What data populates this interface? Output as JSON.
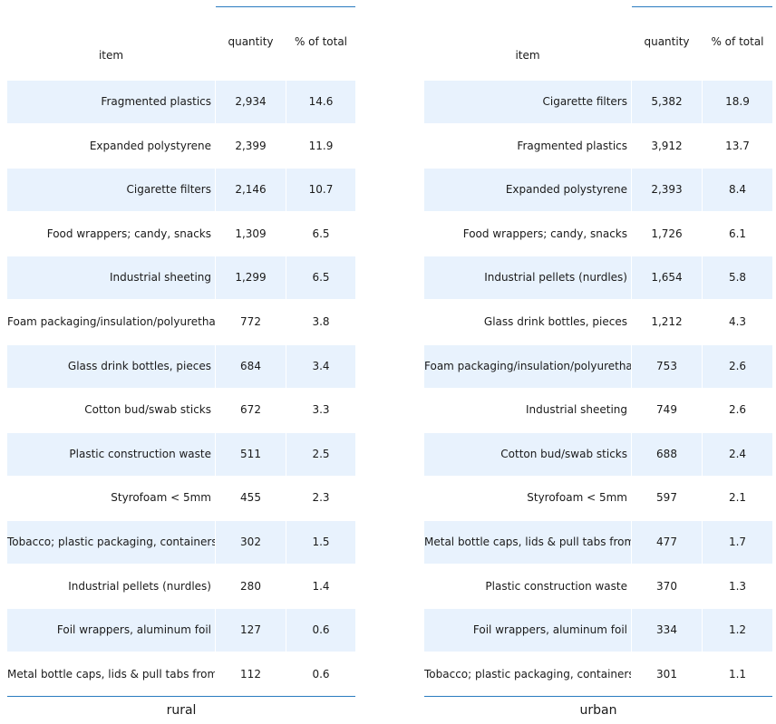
{
  "chart_data": [
    {
      "type": "table",
      "title": "rural",
      "columns": [
        "item",
        "quantity",
        "% of total"
      ],
      "rows": [
        {
          "item": "Fragmented plastics",
          "quantity": "2,934",
          "pct": "14.6"
        },
        {
          "item": "Expanded polystyrene",
          "quantity": "2,399",
          "pct": "11.9"
        },
        {
          "item": "Cigarette filters",
          "quantity": "2,146",
          "pct": "10.7"
        },
        {
          "item": "Food wrappers; candy, snacks",
          "quantity": "1,309",
          "pct": "6.5"
        },
        {
          "item": "Industrial sheeting",
          "quantity": "1,299",
          "pct": "6.5"
        },
        {
          "item": "Foam packaging/insulation/polyurethane",
          "quantity": "772",
          "pct": "3.8"
        },
        {
          "item": "Glass drink bottles, pieces",
          "quantity": "684",
          "pct": "3.4"
        },
        {
          "item": "Cotton bud/swab sticks",
          "quantity": "672",
          "pct": "3.3"
        },
        {
          "item": "Plastic construction waste",
          "quantity": "511",
          "pct": "2.5"
        },
        {
          "item": "Styrofoam < 5mm",
          "quantity": "455",
          "pct": "2.3"
        },
        {
          "item": "Tobacco; plastic packaging, containers",
          "quantity": "302",
          "pct": "1.5"
        },
        {
          "item": "Industrial pellets (nurdles)",
          "quantity": "280",
          "pct": "1.4"
        },
        {
          "item": "Foil wrappers, aluminum foil",
          "quantity": "127",
          "pct": "0.6"
        },
        {
          "item": "Metal bottle caps, lids & pull tabs from cans",
          "quantity": "112",
          "pct": "0.6"
        }
      ]
    },
    {
      "type": "table",
      "title": "urban",
      "columns": [
        "item",
        "quantity",
        "% of total"
      ],
      "rows": [
        {
          "item": "Cigarette filters",
          "quantity": "5,382",
          "pct": "18.9"
        },
        {
          "item": "Fragmented plastics",
          "quantity": "3,912",
          "pct": "13.7"
        },
        {
          "item": "Expanded polystyrene",
          "quantity": "2,393",
          "pct": "8.4"
        },
        {
          "item": "Food wrappers; candy, snacks",
          "quantity": "1,726",
          "pct": "6.1"
        },
        {
          "item": "Industrial pellets (nurdles)",
          "quantity": "1,654",
          "pct": "5.8"
        },
        {
          "item": "Glass drink bottles, pieces",
          "quantity": "1,212",
          "pct": "4.3"
        },
        {
          "item": "Foam packaging/insulation/polyurethane",
          "quantity": "753",
          "pct": "2.6"
        },
        {
          "item": "Industrial sheeting",
          "quantity": "749",
          "pct": "2.6"
        },
        {
          "item": "Cotton bud/swab sticks",
          "quantity": "688",
          "pct": "2.4"
        },
        {
          "item": "Styrofoam < 5mm",
          "quantity": "597",
          "pct": "2.1"
        },
        {
          "item": "Metal bottle caps, lids & pull tabs from cans",
          "quantity": "477",
          "pct": "1.7"
        },
        {
          "item": "Plastic construction waste",
          "quantity": "370",
          "pct": "1.3"
        },
        {
          "item": "Foil wrappers, aluminum foil",
          "quantity": "334",
          "pct": "1.2"
        },
        {
          "item": "Tobacco; plastic packaging, containers",
          "quantity": "301",
          "pct": "1.1"
        }
      ]
    }
  ]
}
